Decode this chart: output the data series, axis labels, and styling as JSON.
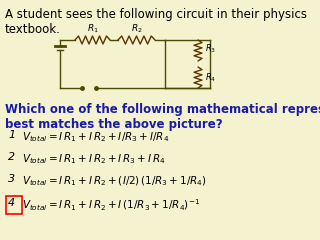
{
  "bg_color": "#f5f2d0",
  "title_text": "A student sees the following circuit in their physics\ntextbook.",
  "question_text": "Which one of the following mathematical representations\nbest matches the above picture?",
  "options": [
    {
      "num": "1",
      "highlight": false
    },
    {
      "num": "2",
      "highlight": false
    },
    {
      "num": "3",
      "highlight": false
    },
    {
      "num": "4",
      "highlight": true
    }
  ],
  "option_formulas": [
    "$V_{total} = I\\,R_1 + I\\,R_2 + I/R_3 + I/R_4$",
    "$V_{total} = I\\,R_1 + I\\,R_2 + I\\,R_3 + I\\,R_4$",
    "$V_{total} = I\\,R_1 + I\\,R_2 + (I/2)\\,(1/R_3 + 1/R_4)$",
    "$V_{total} = I\\,R_1 + I\\,R_2 + I\\,(1/R_3 + 1/R_4)^{-1}$"
  ],
  "wire_color": "#4a4a00",
  "res_color": "#5a3500",
  "title_fontsize": 8.5,
  "question_fontsize": 8.5,
  "option_fontsize": 7.5,
  "num_fontsize": 8.0
}
